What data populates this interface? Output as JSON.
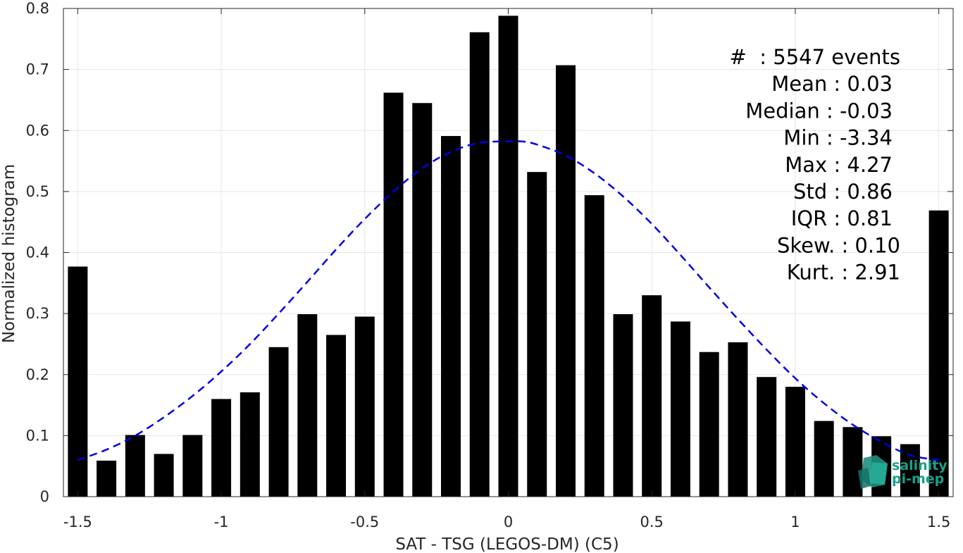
{
  "chart_data": {
    "type": "bar",
    "xlabel": "SAT - TSG (LEGOS-DM) (C5)",
    "ylabel": "Normalized histogram",
    "xlim": [
      -1.55,
      1.55
    ],
    "ylim": [
      0,
      0.8
    ],
    "grid": true,
    "x_ticks": [
      -1.5,
      -1,
      -0.5,
      0,
      0.5,
      1,
      1.5
    ],
    "x_tick_labels": [
      "-1.5",
      "-1",
      "-0.5",
      "0",
      "0.5",
      "1",
      "1.5"
    ],
    "y_ticks": [
      0,
      0.1,
      0.2,
      0.3,
      0.4,
      0.5,
      0.6,
      0.7,
      0.8
    ],
    "y_tick_labels": [
      "0",
      "0.1",
      "0.2",
      "0.3",
      "0.4",
      "0.5",
      "0.6",
      "0.7",
      "0.8"
    ],
    "bar_color": "#000000",
    "curve_color": "#0000e6",
    "series": [
      {
        "type": "bar",
        "x": [
          -1.5,
          -1.4,
          -1.3,
          -1.2,
          -1.1,
          -1.0,
          -0.9,
          -0.8,
          -0.7,
          -0.6,
          -0.5,
          -0.4,
          -0.3,
          -0.2,
          -0.1,
          0.0,
          0.1,
          0.2,
          0.3,
          0.4,
          0.5,
          0.6,
          0.7,
          0.8,
          0.9,
          1.0,
          1.1,
          1.2,
          1.3,
          1.4,
          1.5
        ],
        "values": [
          0.377,
          0.059,
          0.101,
          0.07,
          0.101,
          0.16,
          0.171,
          0.245,
          0.299,
          0.265,
          0.295,
          0.662,
          0.645,
          0.591,
          0.761,
          0.788,
          0.532,
          0.707,
          0.494,
          0.299,
          0.33,
          0.287,
          0.237,
          0.253,
          0.196,
          0.18,
          0.124,
          0.114,
          0.099,
          0.086,
          0.469
        ]
      },
      {
        "type": "line",
        "style": "dashed",
        "x": [
          -1.5,
          -1.4,
          -1.3,
          -1.2,
          -1.1,
          -1.0,
          -0.9,
          -0.8,
          -0.7,
          -0.6,
          -0.5,
          -0.4,
          -0.3,
          -0.2,
          -0.1,
          0.0,
          0.05,
          0.1,
          0.2,
          0.3,
          0.4,
          0.5,
          0.6,
          0.7,
          0.8,
          0.9,
          1.0,
          1.1,
          1.2,
          1.3,
          1.4,
          1.5
        ],
        "values": [
          0.06,
          0.077,
          0.1,
          0.13,
          0.165,
          0.205,
          0.25,
          0.3,
          0.352,
          0.405,
          0.455,
          0.5,
          0.538,
          0.565,
          0.58,
          0.582,
          0.582,
          0.577,
          0.559,
          0.53,
          0.492,
          0.447,
          0.396,
          0.343,
          0.291,
          0.241,
          0.194,
          0.153,
          0.118,
          0.09,
          0.068,
          0.06
        ]
      }
    ],
    "annotations": [
      "#  : 5547 events",
      "Mean : 0.03",
      "Median : -0.03",
      "Min : -3.34",
      "Max : 4.27",
      "Std : 0.86",
      "IQR : 0.81",
      "Skew. : 0.10",
      "Kurt. : 2.91"
    ],
    "logo": [
      "salinity",
      "pi-mep"
    ]
  }
}
